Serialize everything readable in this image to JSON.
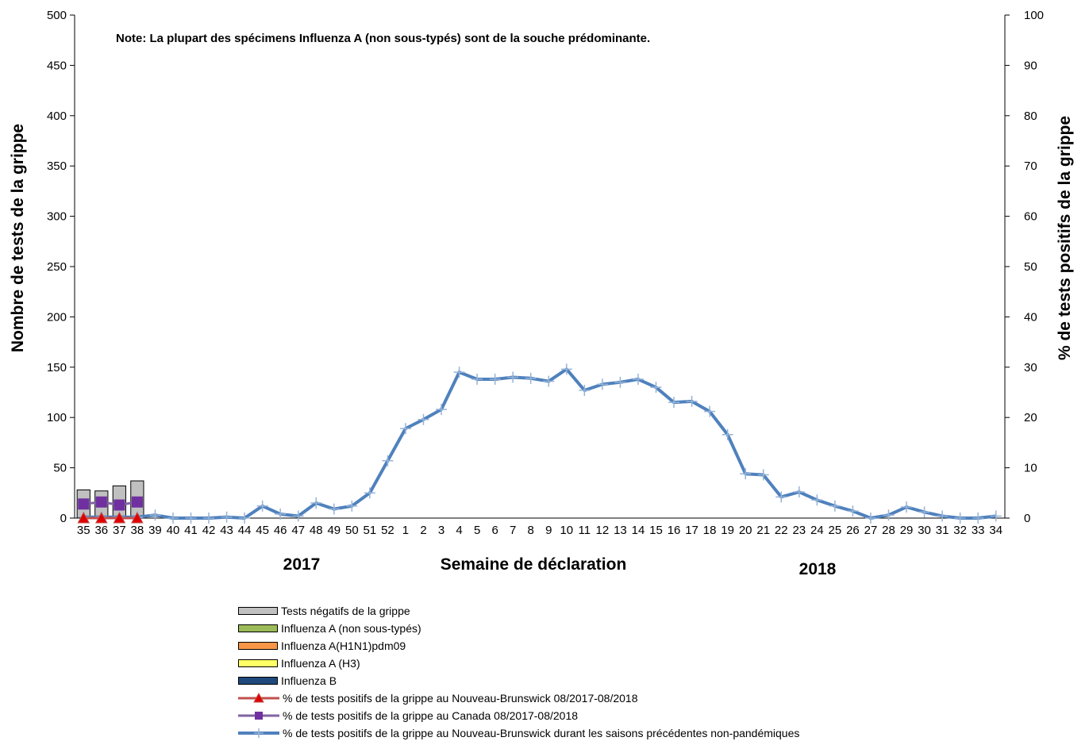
{
  "chart_data": {
    "type": "bar",
    "note": "Note: La plupart des spécimens Influenza A (non sous-typés) sont de la souche prédominante.",
    "ylabel_left": "Nombre de tests de la grippe",
    "ylabel_right": "% de tests positifs de la grippe",
    "xlabel": "Semaine de déclaration",
    "year_labels": [
      "2017",
      "2018"
    ],
    "ylim_left": [
      0,
      500
    ],
    "ylim_right": [
      0,
      100
    ],
    "yticks_left": [
      0,
      50,
      100,
      150,
      200,
      250,
      300,
      350,
      400,
      450,
      500
    ],
    "yticks_right": [
      0,
      10,
      20,
      30,
      40,
      50,
      60,
      70,
      80,
      90,
      100
    ],
    "categories": [
      "35",
      "36",
      "37",
      "38",
      "39",
      "40",
      "41",
      "42",
      "43",
      "44",
      "45",
      "46",
      "47",
      "48",
      "49",
      "50",
      "51",
      "52",
      "1",
      "2",
      "3",
      "4",
      "5",
      "6",
      "7",
      "8",
      "9",
      "10",
      "11",
      "12",
      "13",
      "14",
      "15",
      "16",
      "17",
      "18",
      "19",
      "20",
      "21",
      "22",
      "23",
      "24",
      "25",
      "26",
      "27",
      "28",
      "29",
      "30",
      "31",
      "32",
      "33",
      "34"
    ],
    "bar_series": [
      {
        "name": "Tests négatifs de la grippe",
        "color": "#c0c0c0",
        "values": [
          28,
          27,
          32,
          37
        ]
      },
      {
        "name": "Influenza A (non sous-typés)",
        "color": "#9bbb59",
        "values": [
          0,
          0,
          0,
          0
        ]
      },
      {
        "name": "Influenza A(H1N1)pdm09",
        "color": "#f79646",
        "values": [
          0,
          0,
          0,
          0
        ]
      },
      {
        "name": "Influenza A (H3)",
        "color": "#ffff66",
        "values": [
          0,
          0,
          0,
          0
        ]
      },
      {
        "name": "Influenza B",
        "color": "#1f497d",
        "values": [
          0,
          0,
          0,
          0
        ]
      }
    ],
    "line_series": [
      {
        "name": "% de tests positifs de la grippe  au Nouveau-Brunswick 08/2017-08/2018",
        "color": "#c0504d",
        "marker": "triangle",
        "values": [
          0,
          0,
          0,
          0
        ]
      },
      {
        "name": "% de tests positifs de la grippe  au Canada 08/2017-08/2018",
        "color": "#8064a2",
        "marker": "square",
        "values": [
          2.8,
          3.2,
          2.6,
          3.2
        ]
      },
      {
        "name": "% de tests positifs de la grippe  au Nouveau-Brunswick durant les saisons précédentes non-pandémiques",
        "color": "#4f81bd",
        "marker": "plus",
        "values": [
          0.2,
          0.2,
          0.2,
          0.2,
          0.6,
          0.0,
          0.0,
          0.0,
          0.2,
          0.0,
          2.4,
          0.8,
          0.4,
          3.0,
          1.8,
          2.4,
          5.0,
          11.4,
          17.8,
          19.6,
          21.6,
          29.0,
          27.6,
          27.6,
          28.0,
          27.8,
          27.2,
          29.6,
          25.4,
          26.6,
          27.0,
          27.6,
          26.0,
          23.0,
          23.2,
          21.2,
          16.6,
          8.8,
          8.6,
          4.2,
          5.2,
          3.6,
          2.4,
          1.4,
          0.0,
          0.6,
          2.2,
          1.2,
          0.4,
          0.0,
          0.0,
          0.4
        ]
      }
    ],
    "legend_placement": "bottom"
  }
}
